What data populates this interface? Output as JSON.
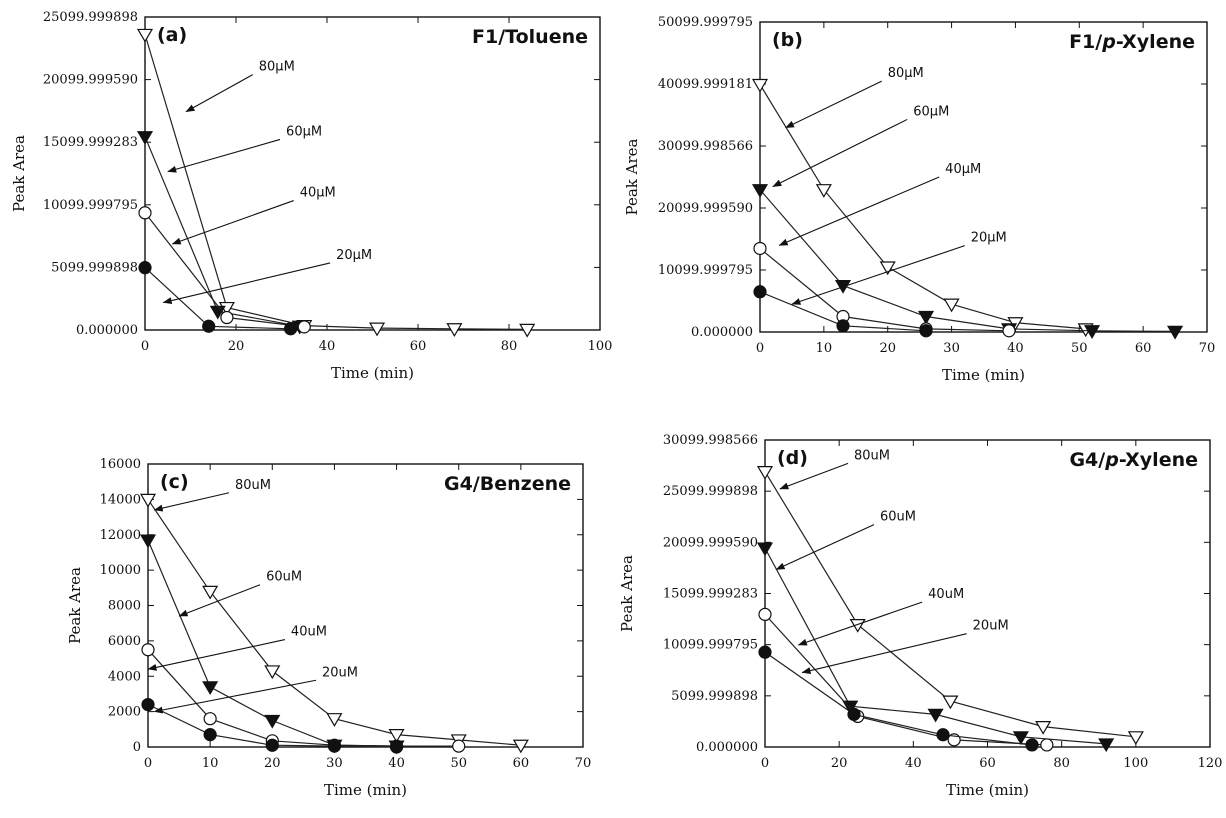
{
  "chart_data": [
    {
      "type": "line",
      "panel_label": "(a)",
      "title": "F1/Toluene",
      "xlabel": "Time (min)",
      "ylabel": "Peak Area",
      "xlim": [
        0,
        100
      ],
      "ylim": [
        0,
        25099.999898
      ],
      "x_ticks": [
        "0",
        "20",
        "40",
        "60",
        "80",
        "100"
      ],
      "y_ticks": [
        "0.000000",
        "5099.999898",
        "10099.999795",
        "15099.999283",
        "20099.999590",
        "25099.999898"
      ],
      "series": [
        {
          "name": "80µM",
          "marker": "triangle-down-open",
          "x": [
            0,
            18,
            35,
            51,
            68,
            84
          ],
          "y": [
            23700,
            1800,
            350,
            150,
            100,
            50
          ]
        },
        {
          "name": "60µM",
          "marker": "triangle-down-filled",
          "x": [
            0,
            16,
            34
          ],
          "y": [
            15500,
            1500,
            300
          ]
        },
        {
          "name": "40µM",
          "marker": "circle-open",
          "x": [
            0,
            18,
            35
          ],
          "y": [
            9400,
            1000,
            250
          ]
        },
        {
          "name": "20µM",
          "marker": "circle-filled",
          "x": [
            0,
            14,
            32
          ],
          "y": [
            5000,
            300,
            100
          ]
        }
      ],
      "annotations": [
        {
          "text": "80µM",
          "tx": 25,
          "ty": 20800,
          "ax": 9,
          "ay": 17500
        },
        {
          "text": "60µM",
          "tx": 31,
          "ty": 15600,
          "ax": 5,
          "ay": 12700
        },
        {
          "text": "40µM",
          "tx": 34,
          "ty": 10700,
          "ax": 6,
          "ay": 6900
        },
        {
          "text": "20µM",
          "tx": 42,
          "ty": 5700,
          "ax": 4,
          "ay": 2200
        }
      ]
    },
    {
      "type": "line",
      "panel_label": "(b)",
      "title": "F1/p-Xylene",
      "xlabel": "Time (min)",
      "ylabel": "Peak Area",
      "xlim": [
        0,
        70
      ],
      "ylim": [
        0,
        50099.999795
      ],
      "x_ticks": [
        "0",
        "10",
        "20",
        "30",
        "40",
        "50",
        "60",
        "70"
      ],
      "y_ticks": [
        "0.000000",
        "10099.999795",
        "20099.999590",
        "30099.998566",
        "40099.999181",
        "50099.999795"
      ],
      "series": [
        {
          "name": "80µM",
          "marker": "triangle-down-open",
          "x": [
            0,
            10,
            20,
            30,
            40,
            51
          ],
          "y": [
            40000,
            23000,
            10500,
            4500,
            1500,
            500
          ]
        },
        {
          "name": "60µM",
          "marker": "triangle-down-filled",
          "x": [
            0,
            13,
            26,
            39,
            52,
            65
          ],
          "y": [
            23000,
            7500,
            2500,
            500,
            200,
            100
          ]
        },
        {
          "name": "40µM",
          "marker": "circle-open",
          "x": [
            0,
            13,
            26,
            39
          ],
          "y": [
            13500,
            2500,
            500,
            200
          ]
        },
        {
          "name": "20µM",
          "marker": "circle-filled",
          "x": [
            0,
            13,
            26
          ],
          "y": [
            6500,
            1000,
            200
          ]
        }
      ],
      "annotations": [
        {
          "text": "80µM",
          "tx": 20,
          "ty": 41200,
          "ax": 4,
          "ay": 33000
        },
        {
          "text": "60µM",
          "tx": 24,
          "ty": 35000,
          "ax": 2,
          "ay": 23500
        },
        {
          "text": "40µM",
          "tx": 29,
          "ty": 25700,
          "ax": 3,
          "ay": 14000
        },
        {
          "text": "20µM",
          "tx": 33,
          "ty": 14600,
          "ax": 5,
          "ay": 4500
        }
      ]
    },
    {
      "type": "line",
      "panel_label": "(c)",
      "title": "G4/Benzene",
      "xlabel": "Time (min)",
      "ylabel": "Peak Area",
      "xlim": [
        0,
        70
      ],
      "ylim": [
        0,
        16000
      ],
      "x_ticks": [
        "0",
        "10",
        "20",
        "30",
        "40",
        "50",
        "60",
        "70"
      ],
      "y_ticks": [
        "0",
        "2000",
        "4000",
        "6000",
        "8000",
        "10000",
        "12000",
        "14000",
        "16000"
      ],
      "series": [
        {
          "name": "80uM",
          "marker": "triangle-down-open",
          "x": [
            0,
            10,
            20,
            30,
            40,
            50,
            60
          ],
          "y": [
            14000,
            8800,
            4300,
            1600,
            700,
            400,
            100
          ]
        },
        {
          "name": "60uM",
          "marker": "triangle-down-filled",
          "x": [
            0,
            10,
            20,
            30,
            40
          ],
          "y": [
            11700,
            3400,
            1500,
            100,
            50
          ]
        },
        {
          "name": "40uM",
          "marker": "circle-open",
          "x": [
            0,
            10,
            20,
            30,
            40,
            50
          ],
          "y": [
            5500,
            1600,
            350,
            100,
            50,
            50
          ]
        },
        {
          "name": "20uM",
          "marker": "circle-filled",
          "x": [
            0,
            10,
            20,
            30,
            40
          ],
          "y": [
            2400,
            700,
            100,
            50,
            0
          ]
        }
      ],
      "annotations": [
        {
          "text": "80uM",
          "tx": 14,
          "ty": 14600,
          "ax": 1,
          "ay": 13400
        },
        {
          "text": "60uM",
          "tx": 19,
          "ty": 9400,
          "ax": 5,
          "ay": 7400
        },
        {
          "text": "40uM",
          "tx": 23,
          "ty": 6300,
          "ax": 0,
          "ay": 4400
        },
        {
          "text": "20uM",
          "tx": 28,
          "ty": 4000,
          "ax": 1,
          "ay": 2000
        }
      ]
    },
    {
      "type": "line",
      "panel_label": "(d)",
      "title": "G4/p-Xylene",
      "xlabel": "Time (min)",
      "ylabel": "Peak Area",
      "xlim": [
        0,
        120
      ],
      "ylim": [
        0,
        30099.998566
      ],
      "x_ticks": [
        "0",
        "20",
        "40",
        "60",
        "80",
        "100",
        "120"
      ],
      "y_ticks": [
        "0.000000",
        "5099.999898",
        "10099.999795",
        "15099.999283",
        "20099.999590",
        "25099.999898",
        "30099.998566"
      ],
      "series": [
        {
          "name": "80uM",
          "marker": "triangle-down-open",
          "x": [
            0,
            25,
            50,
            75,
            100
          ],
          "y": [
            27000,
            12000,
            4500,
            2000,
            1000
          ]
        },
        {
          "name": "60uM",
          "marker": "triangle-down-filled",
          "x": [
            0,
            23,
            46,
            69,
            92
          ],
          "y": [
            19500,
            4000,
            3200,
            1000,
            300
          ]
        },
        {
          "name": "40uM",
          "marker": "circle-open",
          "x": [
            0,
            25,
            51,
            76
          ],
          "y": [
            13000,
            3000,
            700,
            200
          ]
        },
        {
          "name": "20uM",
          "marker": "circle-filled",
          "x": [
            0,
            24,
            48,
            72
          ],
          "y": [
            9300,
            3200,
            1200,
            200
          ]
        }
      ],
      "annotations": [
        {
          "text": "80uM",
          "tx": 24,
          "ty": 28200,
          "ax": 4,
          "ay": 25300
        },
        {
          "text": "60uM",
          "tx": 31,
          "ty": 22200,
          "ax": 3,
          "ay": 17400
        },
        {
          "text": "40uM",
          "tx": 44,
          "ty": 14600,
          "ax": 9,
          "ay": 10000
        },
        {
          "text": "20uM",
          "tx": 56,
          "ty": 11500,
          "ax": 10,
          "ay": 7300
        }
      ]
    }
  ]
}
